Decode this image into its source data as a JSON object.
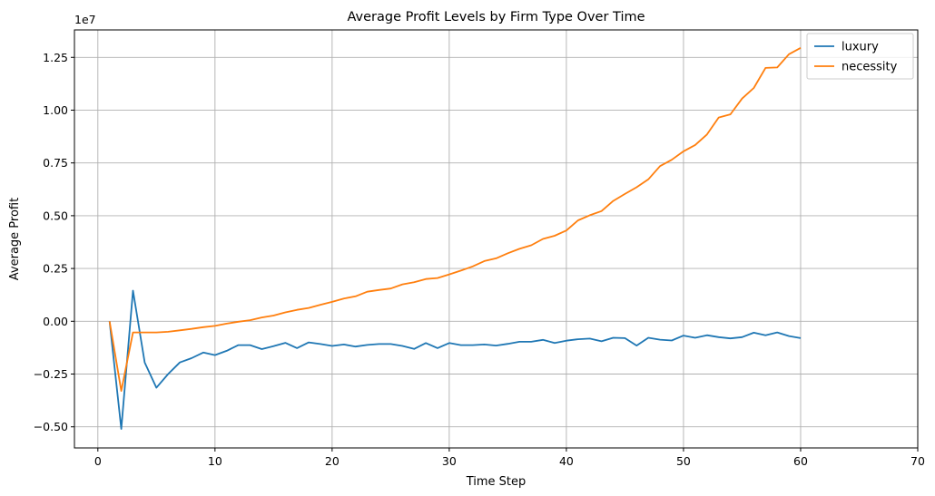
{
  "chart_data": {
    "type": "line",
    "title": "Average Profit Levels by Firm Type Over Time",
    "xlabel": "Time Step",
    "ylabel": "Average Profit",
    "offset_label": "1e7",
    "xlim": [
      -2,
      70
    ],
    "ylim": [
      -0.6,
      1.38
    ],
    "xticks": [
      0,
      10,
      20,
      30,
      40,
      50,
      60,
      70
    ],
    "yticks": [
      -0.5,
      -0.25,
      0.0,
      0.25,
      0.5,
      0.75,
      1.0,
      1.25
    ],
    "xtick_labels": [
      "0",
      "10",
      "20",
      "30",
      "40",
      "50",
      "60",
      "70"
    ],
    "ytick_labels": [
      "−0.50",
      "−0.25",
      "0.00",
      "0.25",
      "0.50",
      "0.75",
      "1.00",
      "1.25"
    ],
    "grid": true,
    "legend_position": "top-right",
    "x": [
      1,
      2,
      3,
      4,
      5,
      6,
      7,
      8,
      9,
      10,
      11,
      12,
      13,
      14,
      15,
      16,
      17,
      18,
      19,
      20,
      21,
      22,
      23,
      24,
      25,
      26,
      27,
      28,
      29,
      30,
      31,
      32,
      33,
      34,
      35,
      36,
      37,
      38,
      39,
      40,
      41,
      42,
      43,
      44,
      45,
      46,
      47,
      48,
      49,
      50,
      51,
      52,
      53,
      54,
      55,
      56,
      57,
      58,
      59,
      60
    ],
    "series": [
      {
        "name": "luxury",
        "color": "#1f77b4",
        "values": [
          0.0,
          -0.51,
          0.145,
          -0.195,
          -0.315,
          -0.25,
          -0.195,
          -0.175,
          -0.148,
          -0.16,
          -0.14,
          -0.113,
          -0.113,
          -0.132,
          -0.118,
          -0.102,
          -0.127,
          -0.1,
          -0.108,
          -0.117,
          -0.11,
          -0.12,
          -0.112,
          -0.108,
          -0.108,
          -0.117,
          -0.131,
          -0.103,
          -0.127,
          -0.103,
          -0.113,
          -0.113,
          -0.11,
          -0.115,
          -0.107,
          -0.097,
          -0.097,
          -0.088,
          -0.103,
          -0.092,
          -0.085,
          -0.082,
          -0.095,
          -0.078,
          -0.08,
          -0.115,
          -0.078,
          -0.087,
          -0.091,
          -0.068,
          -0.078,
          -0.066,
          -0.075,
          -0.081,
          -0.075,
          -0.054,
          -0.066,
          -0.053,
          -0.07,
          -0.08
        ]
      },
      {
        "name": "necessity",
        "color": "#ff7f0e",
        "values": [
          0.0,
          -0.33,
          -0.053,
          -0.053,
          -0.053,
          -0.05,
          -0.043,
          -0.036,
          -0.028,
          -0.022,
          -0.011,
          -0.002,
          0.005,
          0.018,
          0.027,
          0.042,
          0.054,
          0.063,
          0.078,
          0.092,
          0.108,
          0.118,
          0.14,
          0.148,
          0.155,
          0.175,
          0.185,
          0.2,
          0.205,
          0.222,
          0.24,
          0.26,
          0.285,
          0.298,
          0.322,
          0.343,
          0.36,
          0.39,
          0.405,
          0.43,
          0.478,
          0.502,
          0.522,
          0.57,
          0.603,
          0.635,
          0.672,
          0.735,
          0.765,
          0.805,
          0.835,
          0.885,
          0.965,
          0.98,
          1.055,
          1.105,
          1.2,
          1.202,
          1.265,
          1.295
        ]
      }
    ]
  }
}
